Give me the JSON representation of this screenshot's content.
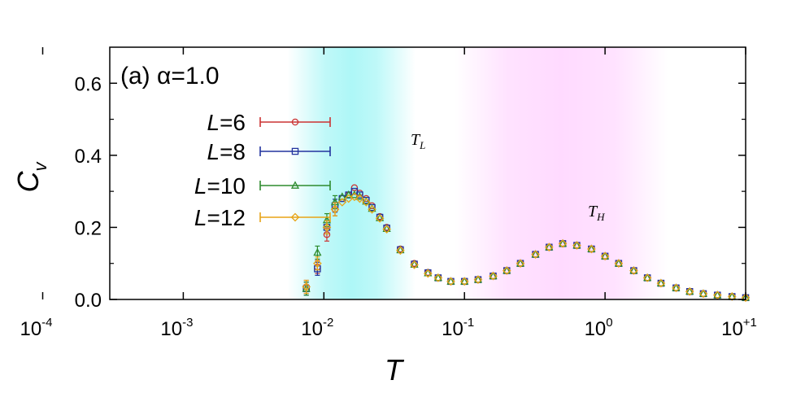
{
  "chart_data": {
    "type": "scatter",
    "panel_label": "(a) α=1.0",
    "ylabel_main": "C",
    "ylabel_sub": "v",
    "xlabel": "T",
    "x_scale": "log",
    "xlim": [
      0.0003,
      10
    ],
    "ylim": [
      0,
      0.7
    ],
    "y_ticks": [
      {
        "value": 0.0,
        "label": "0.0"
      },
      {
        "value": 0.2,
        "label": "0.2"
      },
      {
        "value": 0.4,
        "label": "0.4"
      },
      {
        "value": 0.6,
        "label": "0.6"
      }
    ],
    "x_ticks": [
      {
        "value": 0.0001,
        "base": "10",
        "exp": "-4"
      },
      {
        "value": 0.001,
        "base": "10",
        "exp": "-3"
      },
      {
        "value": 0.01,
        "base": "10",
        "exp": "-2"
      },
      {
        "value": 0.1,
        "base": "10",
        "exp": "-1"
      },
      {
        "value": 1,
        "base": "10",
        "exp": "0"
      },
      {
        "value": 10,
        "base": "10",
        "exp": "+1"
      }
    ],
    "shaded_regions": [
      {
        "label_main": "T",
        "label_sub": "L",
        "center": 0.016,
        "lo": 0.0055,
        "hi": 0.045,
        "color": "#00e5e5"
      },
      {
        "label_main": "T",
        "label_sub": "H",
        "center": 0.5,
        "lo": 0.085,
        "hi": 2.8,
        "color": "#ff8cff"
      }
    ],
    "series": [
      {
        "name": "6",
        "color": "#cc3333",
        "marker": "circle",
        "points": [
          [
            0.0075,
            0.035
          ],
          [
            0.009,
            0.09
          ],
          [
            0.0105,
            0.18
          ],
          [
            0.012,
            0.25
          ],
          [
            0.0135,
            0.28
          ],
          [
            0.015,
            0.29
          ],
          [
            0.0165,
            0.31
          ],
          [
            0.018,
            0.295
          ],
          [
            0.02,
            0.28
          ],
          [
            0.022,
            0.26
          ],
          [
            0.025,
            0.23
          ],
          [
            0.028,
            0.2
          ],
          [
            0.035,
            0.14
          ],
          [
            0.044,
            0.1
          ],
          [
            0.055,
            0.075
          ],
          [
            0.065,
            0.06
          ],
          [
            0.08,
            0.05
          ],
          [
            0.1,
            0.05
          ],
          [
            0.125,
            0.055
          ],
          [
            0.16,
            0.065
          ],
          [
            0.2,
            0.08
          ],
          [
            0.25,
            0.1
          ],
          [
            0.32,
            0.125
          ],
          [
            0.4,
            0.145
          ],
          [
            0.5,
            0.155
          ],
          [
            0.63,
            0.15
          ],
          [
            0.8,
            0.14
          ],
          [
            1.0,
            0.12
          ],
          [
            1.25,
            0.1
          ],
          [
            1.6,
            0.08
          ],
          [
            2.0,
            0.06
          ],
          [
            2.5,
            0.045
          ],
          [
            3.2,
            0.032
          ],
          [
            4.0,
            0.022
          ],
          [
            5.0,
            0.016
          ],
          [
            6.3,
            0.012
          ],
          [
            8.0,
            0.008
          ],
          [
            10.0,
            0.005
          ]
        ]
      },
      {
        "name": "8",
        "color": "#22339e",
        "marker": "square",
        "points": [
          [
            0.0075,
            0.03
          ],
          [
            0.009,
            0.085
          ],
          [
            0.0105,
            0.2
          ],
          [
            0.012,
            0.26
          ],
          [
            0.0135,
            0.28
          ],
          [
            0.015,
            0.29
          ],
          [
            0.0165,
            0.3
          ],
          [
            0.018,
            0.29
          ],
          [
            0.02,
            0.275
          ],
          [
            0.022,
            0.255
          ],
          [
            0.025,
            0.228
          ],
          [
            0.028,
            0.198
          ],
          [
            0.035,
            0.138
          ],
          [
            0.044,
            0.098
          ],
          [
            0.055,
            0.074
          ],
          [
            0.065,
            0.06
          ],
          [
            0.08,
            0.05
          ],
          [
            0.1,
            0.05
          ],
          [
            0.125,
            0.055
          ],
          [
            0.16,
            0.065
          ],
          [
            0.2,
            0.08
          ],
          [
            0.25,
            0.1
          ],
          [
            0.32,
            0.125
          ],
          [
            0.4,
            0.145
          ],
          [
            0.5,
            0.155
          ],
          [
            0.63,
            0.15
          ],
          [
            0.8,
            0.14
          ],
          [
            1.0,
            0.12
          ],
          [
            1.25,
            0.1
          ],
          [
            1.6,
            0.08
          ],
          [
            2.0,
            0.06
          ],
          [
            2.5,
            0.045
          ],
          [
            3.2,
            0.032
          ],
          [
            4.0,
            0.022
          ],
          [
            5.0,
            0.016
          ],
          [
            6.3,
            0.012
          ],
          [
            8.0,
            0.008
          ],
          [
            10.0,
            0.005
          ]
        ]
      },
      {
        "name": "10",
        "color": "#2e8b2e",
        "marker": "triangle",
        "points": [
          [
            0.0075,
            0.03
          ],
          [
            0.009,
            0.13
          ],
          [
            0.0105,
            0.22
          ],
          [
            0.012,
            0.27
          ],
          [
            0.0135,
            0.285
          ],
          [
            0.015,
            0.29
          ],
          [
            0.0165,
            0.29
          ],
          [
            0.018,
            0.285
          ],
          [
            0.02,
            0.272
          ],
          [
            0.022,
            0.252
          ],
          [
            0.025,
            0.226
          ],
          [
            0.028,
            0.196
          ],
          [
            0.035,
            0.137
          ],
          [
            0.044,
            0.097
          ],
          [
            0.055,
            0.073
          ],
          [
            0.065,
            0.06
          ],
          [
            0.08,
            0.05
          ],
          [
            0.1,
            0.05
          ],
          [
            0.125,
            0.055
          ],
          [
            0.16,
            0.065
          ],
          [
            0.2,
            0.08
          ],
          [
            0.25,
            0.1
          ],
          [
            0.32,
            0.125
          ],
          [
            0.4,
            0.145
          ],
          [
            0.5,
            0.155
          ],
          [
            0.63,
            0.15
          ],
          [
            0.8,
            0.14
          ],
          [
            1.0,
            0.12
          ],
          [
            1.25,
            0.1
          ],
          [
            1.6,
            0.08
          ],
          [
            2.0,
            0.06
          ],
          [
            2.5,
            0.045
          ],
          [
            3.2,
            0.032
          ],
          [
            4.0,
            0.022
          ],
          [
            5.0,
            0.016
          ],
          [
            6.3,
            0.012
          ],
          [
            8.0,
            0.008
          ],
          [
            10.0,
            0.005
          ]
        ]
      },
      {
        "name": "12",
        "color": "#e8a317",
        "marker": "diamond",
        "points": [
          [
            0.0075,
            0.035
          ],
          [
            0.009,
            0.1
          ],
          [
            0.0105,
            0.2
          ],
          [
            0.012,
            0.25
          ],
          [
            0.0135,
            0.27
          ],
          [
            0.015,
            0.28
          ],
          [
            0.0165,
            0.285
          ],
          [
            0.018,
            0.28
          ],
          [
            0.02,
            0.27
          ],
          [
            0.022,
            0.25
          ],
          [
            0.025,
            0.225
          ],
          [
            0.028,
            0.195
          ],
          [
            0.035,
            0.136
          ],
          [
            0.044,
            0.096
          ],
          [
            0.055,
            0.072
          ],
          [
            0.065,
            0.06
          ],
          [
            0.08,
            0.05
          ],
          [
            0.1,
            0.05
          ],
          [
            0.125,
            0.055
          ],
          [
            0.16,
            0.065
          ],
          [
            0.2,
            0.08
          ],
          [
            0.25,
            0.1
          ],
          [
            0.32,
            0.125
          ],
          [
            0.4,
            0.145
          ],
          [
            0.5,
            0.155
          ],
          [
            0.63,
            0.15
          ],
          [
            0.8,
            0.14
          ],
          [
            1.0,
            0.12
          ],
          [
            1.25,
            0.1
          ],
          [
            1.6,
            0.08
          ],
          [
            2.0,
            0.06
          ],
          [
            2.5,
            0.045
          ],
          [
            3.2,
            0.032
          ],
          [
            4.0,
            0.022
          ],
          [
            5.0,
            0.016
          ],
          [
            6.3,
            0.012
          ],
          [
            8.0,
            0.008
          ],
          [
            10.0,
            0.005
          ]
        ]
      }
    ],
    "legend_prefix": "L=",
    "legend_placement": "upper-left"
  }
}
